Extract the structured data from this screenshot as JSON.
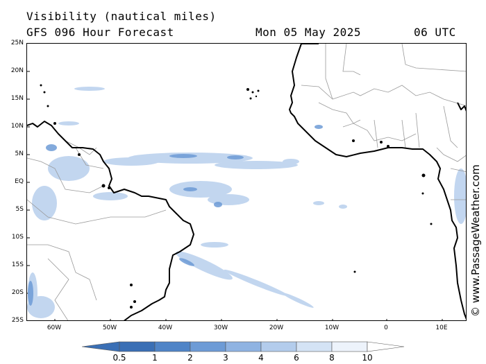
{
  "header": {
    "title": "Visibility (nautical miles)",
    "subtitle": "GFS 096 Hour Forecast",
    "date": "Mon 05 May 2025",
    "time": "06 UTC"
  },
  "axes": {
    "lat_labels": [
      "25N",
      "20N",
      "15N",
      "10N",
      "5N",
      "EQ",
      "5S",
      "10S",
      "15S",
      "20S",
      "25S"
    ],
    "lon_labels": [
      "60W",
      "50W",
      "40W",
      "30W",
      "20W",
      "10W",
      "0",
      "10E"
    ]
  },
  "credit": "© www.PassageWeather.com",
  "legend": {
    "labels": [
      "0.5",
      "1",
      "2",
      "3",
      "4",
      "6",
      "8",
      "10"
    ],
    "colors": [
      "#3a6fb5",
      "#4f84c7",
      "#6d9bd6",
      "#8fb3e2",
      "#b3ccec",
      "#d4e3f5",
      "#edf3fb",
      "#ffffff"
    ]
  },
  "colors": {
    "land_outline": "#000000",
    "border": "#999999",
    "vis_light": "#b3ccec",
    "vis_med": "#7fa6dd"
  }
}
